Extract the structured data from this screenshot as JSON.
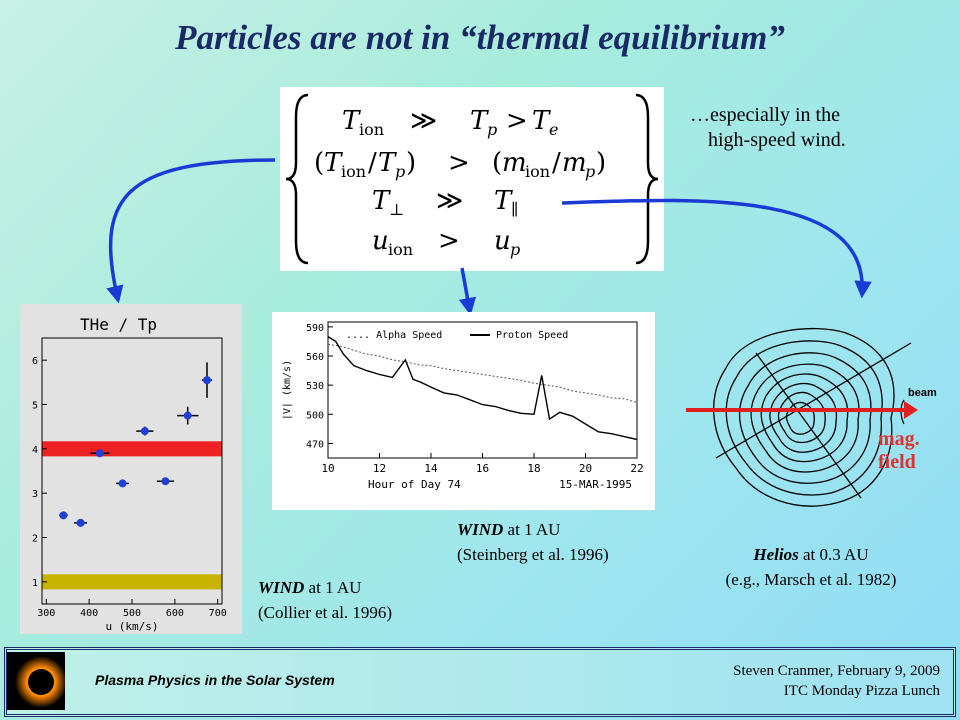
{
  "slide": {
    "title": "Particles are not in “thermal equilibrium”",
    "note_line1": "…especially in the",
    "note_line2": "high-speed wind."
  },
  "equations": {
    "row1": [
      "T",
      "ion",
      "≫",
      "T",
      "p",
      "> T",
      "e"
    ],
    "row2": "(T ion/T p)   >   (m ion/m p)",
    "row3": [
      "T",
      "⊥",
      "≫",
      "T",
      "∥"
    ],
    "row4": [
      "u",
      "ion",
      ">",
      "u",
      "p"
    ]
  },
  "captions": {
    "mid": {
      "em": "WIND",
      "rest": " at 1 AU",
      "line2": "(Steinberg et al. 1996)"
    },
    "left": {
      "em": "WIND",
      "rest": " at 1 AU",
      "line2": "(Collier et al. 1996)"
    },
    "right": {
      "em": "Helios",
      "rest": " at 0.3 AU",
      "line2": "(e.g., Marsch et al. 1982)"
    }
  },
  "right_plot": {
    "beam_label": "beam",
    "mag_line1": "mag.",
    "mag_line2": "field"
  },
  "footer": {
    "left": "Plasma Physics in the Solar System",
    "right_line1": "Steven Cranmer,  February 9, 2009",
    "right_line2": "ITC Monday Pizza Lunch"
  },
  "chart_data": [
    {
      "type": "scatter",
      "title": "THe / Tp",
      "xlabel": "u (km/s)",
      "xlim": [
        290,
        710
      ],
      "ylim": [
        0.5,
        6.5
      ],
      "xticks": [
        300,
        400,
        500,
        600,
        700
      ],
      "yticks": [
        1,
        2,
        3,
        4,
        5,
        6
      ],
      "points": [
        {
          "x": 340,
          "y": 2.5,
          "xerr": 10,
          "yerr": 0
        },
        {
          "x": 380,
          "y": 2.33,
          "xerr": 15,
          "yerr": 0
        },
        {
          "x": 425,
          "y": 3.9,
          "xerr": 22,
          "yerr": 0
        },
        {
          "x": 478,
          "y": 3.22,
          "xerr": 15,
          "yerr": 0.05
        },
        {
          "x": 530,
          "y": 4.4,
          "xerr": 20,
          "yerr": 0.1
        },
        {
          "x": 578,
          "y": 3.27,
          "xerr": 20,
          "yerr": 0.05
        },
        {
          "x": 630,
          "y": 4.75,
          "xerr": 25,
          "yerr": 0.2
        },
        {
          "x": 675,
          "y": 5.55,
          "xerr": 12,
          "yerr": 0.4
        }
      ],
      "bands": [
        {
          "color": "#ee2222",
          "y": 4.0
        },
        {
          "color": "#c8b400",
          "y": 1.0
        }
      ]
    },
    {
      "type": "line",
      "ylabel": "|V| (km/s)",
      "xlabel": "Hour of Day 74",
      "xlabel_right": "15-MAR-1995",
      "xlim": [
        10,
        22
      ],
      "ylim": [
        455,
        595
      ],
      "xticks": [
        10,
        12,
        14,
        16,
        18,
        20,
        22
      ],
      "yticks": [
        470,
        500,
        530,
        560,
        590
      ],
      "series": [
        {
          "name": ".... Alpha Speed",
          "x": [
            10,
            10.5,
            11,
            11.5,
            12,
            12.5,
            13,
            13.5,
            14,
            14.5,
            15,
            15.5,
            16,
            16.5,
            17,
            17.5,
            18,
            18.5,
            19,
            19.5,
            20,
            20.5,
            21,
            21.5,
            22
          ],
          "y": [
            572,
            570,
            566,
            562,
            560,
            556,
            554,
            551,
            550,
            547,
            545,
            543,
            541,
            539,
            537,
            535,
            532,
            530,
            528,
            524,
            522,
            520,
            517,
            516,
            512
          ]
        },
        {
          "name": "Proton Speed",
          "x": [
            10,
            10.3,
            10.6,
            11,
            11.5,
            12,
            12.5,
            13,
            13.3,
            13.6,
            14,
            14.5,
            15,
            15.5,
            16,
            16.5,
            17,
            17.5,
            18,
            18.3,
            18.6,
            19,
            19.5,
            20,
            20.5,
            21,
            21.5,
            22
          ],
          "y": [
            580,
            575,
            562,
            550,
            545,
            541,
            538,
            556,
            536,
            533,
            528,
            522,
            520,
            515,
            510,
            508,
            504,
            501,
            500,
            540,
            495,
            502,
            498,
            490,
            482,
            480,
            477,
            474
          ]
        }
      ]
    }
  ]
}
